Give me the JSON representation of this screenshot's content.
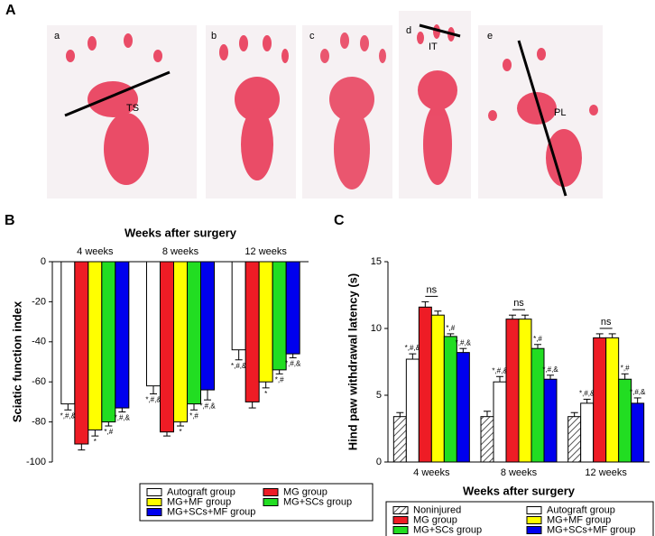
{
  "panel_a": {
    "label": "A",
    "images": [
      "a",
      "b",
      "c",
      "d",
      "e"
    ],
    "measures": [
      "TS",
      "IT",
      "PL"
    ]
  },
  "chart_data": [
    {
      "type": "bar",
      "panel": "B",
      "title": "Weeks after surgery",
      "ylabel": "Sciatic function index",
      "categories": [
        "4 weeks",
        "8 weeks",
        "12 weeks"
      ],
      "ylim": [
        -100,
        0
      ],
      "yticks": [
        0,
        -20,
        -40,
        -60,
        -80,
        -100
      ],
      "series": [
        {
          "name": "Autograft group",
          "color": "#ffffff",
          "values": [
            -71,
            -62,
            -44
          ],
          "errors": [
            3,
            4,
            5
          ],
          "annotations": [
            "*,#,&",
            "*,#,&",
            "*,#,&"
          ]
        },
        {
          "name": "MG group",
          "color": "#ee1c25",
          "values": [
            -91,
            -85,
            -70
          ],
          "errors": [
            3,
            2,
            3
          ],
          "annotations": [
            null,
            null,
            null
          ]
        },
        {
          "name": "MG+MF group",
          "color": "#ffff00",
          "values": [
            -84,
            -80,
            -60
          ],
          "errors": [
            3,
            2,
            3
          ],
          "annotations": [
            "*",
            "*",
            "*"
          ]
        },
        {
          "name": "MG+SCs group",
          "color": "#22dd22",
          "values": [
            -80,
            -71,
            -54
          ],
          "errors": [
            2,
            3,
            2
          ],
          "annotations": [
            "*,#",
            "*,#",
            "*,#"
          ]
        },
        {
          "name": "MG+SCs+MF group",
          "color": "#0000ee",
          "values": [
            -73,
            -64,
            -46
          ],
          "errors": [
            2,
            5,
            2
          ],
          "annotations": [
            "*,#,&",
            "*,#,&",
            "*,#,&"
          ]
        }
      ]
    },
    {
      "type": "bar",
      "panel": "C",
      "xlabel": "Weeks after surgery",
      "ylabel": "Hind paw withdrawal latency (s)",
      "categories": [
        "4 weeks",
        "8 weeks",
        "12 weeks"
      ],
      "ylim": [
        0,
        15
      ],
      "yticks": [
        0,
        5,
        10,
        15
      ],
      "ns_labels": [
        "ns",
        "ns",
        "ns"
      ],
      "series": [
        {
          "name": "Noninjured",
          "color": "#ffffff",
          "pattern": "hatched",
          "values": [
            3.4,
            3.4,
            3.4
          ],
          "errors": [
            0.3,
            0.4,
            0.3
          ],
          "annotations": [
            null,
            null,
            null
          ]
        },
        {
          "name": "Autograft group",
          "color": "#ffffff",
          "values": [
            7.7,
            6.0,
            4.4
          ],
          "errors": [
            0.4,
            0.4,
            0.3
          ],
          "annotations": [
            "*,#,&",
            "*,#,&",
            "*,#,&"
          ]
        },
        {
          "name": "MG group",
          "color": "#ee1c25",
          "values": [
            11.6,
            10.7,
            9.3
          ],
          "errors": [
            0.4,
            0.3,
            0.3
          ],
          "annotations": [
            null,
            null,
            null
          ]
        },
        {
          "name": "MG+MF group",
          "color": "#ffff00",
          "values": [
            11.0,
            10.7,
            9.3
          ],
          "errors": [
            0.3,
            0.3,
            0.3
          ],
          "annotations": [
            null,
            null,
            null
          ]
        },
        {
          "name": "MG+SCs group",
          "color": "#22dd22",
          "values": [
            9.4,
            8.5,
            6.2
          ],
          "errors": [
            0.2,
            0.3,
            0.4
          ],
          "annotations": [
            "*,#",
            "*,#",
            "*,#"
          ]
        },
        {
          "name": "MG+SCs+MF group",
          "color": "#0000ee",
          "values": [
            8.2,
            6.2,
            4.4
          ],
          "errors": [
            0.3,
            0.3,
            0.4
          ],
          "annotations": [
            "*,#,&",
            "*,#,&",
            "*,#,&"
          ]
        }
      ]
    }
  ]
}
